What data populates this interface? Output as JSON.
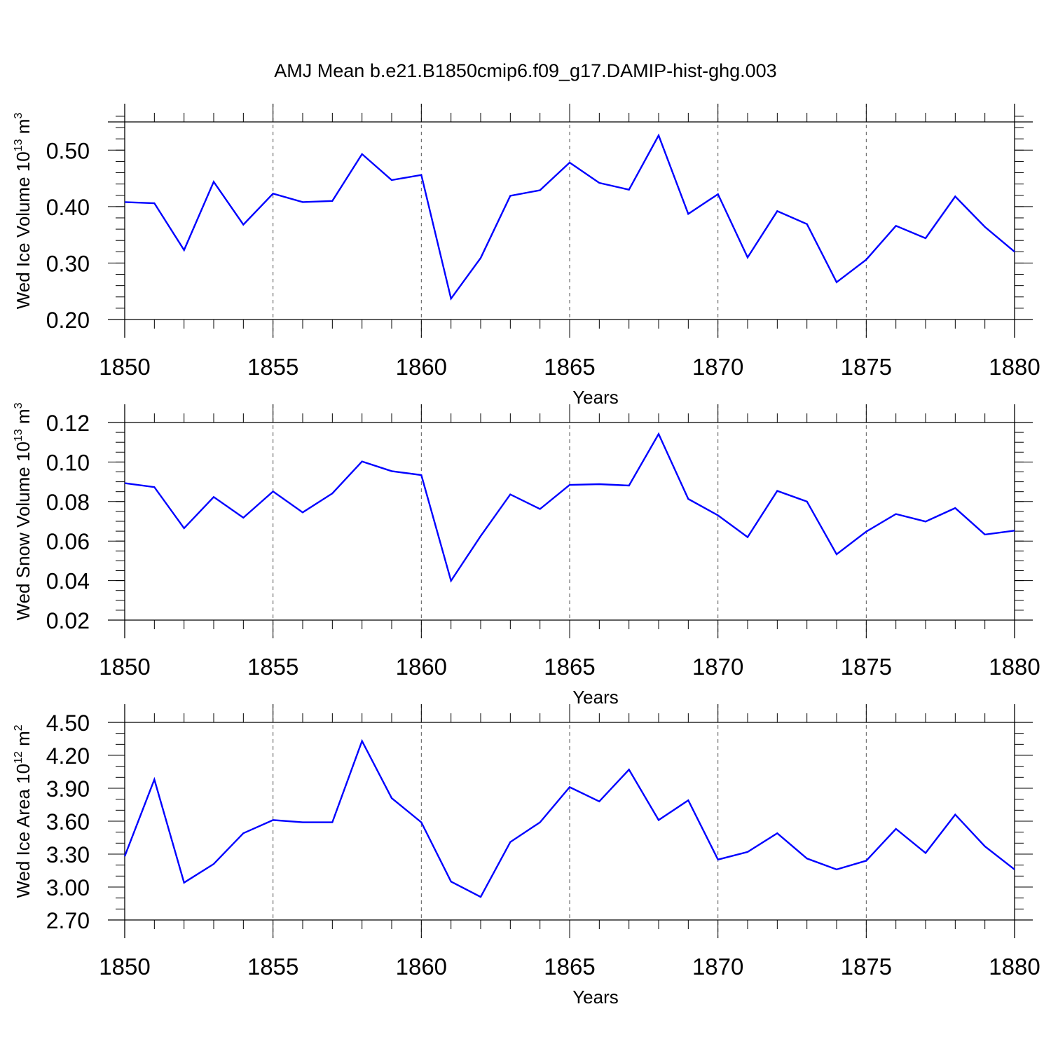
{
  "figure": {
    "title": "AMJ Mean b.e21.B1850cmip6.f09_g17.DAMIP-hist-ghg.003"
  },
  "chart_data": [
    {
      "type": "line",
      "title": "AMJ Mean b.e21.B1850cmip6.f09_g17.DAMIP-hist-ghg.003",
      "xlabel": "Years",
      "ylabel": {
        "base": "Wed Ice Volume 10",
        "exp": "13",
        "unit": " m",
        "unit_exp": "3"
      },
      "xlim": [
        1850,
        1880
      ],
      "ylim": [
        0.2,
        0.55
      ],
      "yticks": [
        "0.20",
        "0.30",
        "0.40",
        "0.50"
      ],
      "yminor_step": 0.02,
      "xticks": [
        "1850",
        "1855",
        "1860",
        "1865",
        "1870",
        "1875",
        "1880"
      ],
      "grid": "x-major dashed",
      "x": [
        1850,
        1851,
        1852,
        1853,
        1854,
        1855,
        1856,
        1857,
        1858,
        1859,
        1860,
        1861,
        1862,
        1863,
        1864,
        1865,
        1866,
        1867,
        1868,
        1869,
        1870,
        1871,
        1872,
        1873,
        1874,
        1875,
        1876,
        1877,
        1878,
        1879,
        1880
      ],
      "series": [
        {
          "name": "Wed Ice Volume",
          "color": "#0000ff",
          "values": [
            0.408,
            0.406,
            0.323,
            0.444,
            0.368,
            0.423,
            0.408,
            0.41,
            0.493,
            0.447,
            0.456,
            0.237,
            0.309,
            0.419,
            0.429,
            0.478,
            0.442,
            0.43,
            0.526,
            0.387,
            0.422,
            0.31,
            0.392,
            0.369,
            0.266,
            0.306,
            0.366,
            0.344,
            0.418,
            0.364,
            0.32
          ]
        }
      ]
    },
    {
      "type": "line",
      "xlabel": "Years",
      "ylabel": {
        "base": "Wed Snow Volume 10",
        "exp": "13",
        "unit": " m",
        "unit_exp": "3"
      },
      "xlim": [
        1850,
        1880
      ],
      "ylim": [
        0.02,
        0.12
      ],
      "yticks": [
        "0.02",
        "0.04",
        "0.06",
        "0.08",
        "0.10",
        "0.12"
      ],
      "yminor_step": 0.005,
      "xticks": [
        "1850",
        "1855",
        "1860",
        "1865",
        "1870",
        "1875",
        "1880"
      ],
      "grid": "x-major dashed",
      "x": [
        1850,
        1851,
        1852,
        1853,
        1854,
        1855,
        1856,
        1857,
        1858,
        1859,
        1860,
        1861,
        1862,
        1863,
        1864,
        1865,
        1866,
        1867,
        1868,
        1869,
        1870,
        1871,
        1872,
        1873,
        1874,
        1875,
        1876,
        1877,
        1878,
        1879,
        1880
      ],
      "series": [
        {
          "name": "Wed Snow Volume",
          "color": "#0000ff",
          "values": [
            0.0893,
            0.0873,
            0.0665,
            0.0823,
            0.0718,
            0.0851,
            0.0745,
            0.0841,
            0.1003,
            0.0954,
            0.0934,
            0.0399,
            0.0625,
            0.0836,
            0.0762,
            0.0884,
            0.0888,
            0.0881,
            0.1142,
            0.0813,
            0.073,
            0.062,
            0.0854,
            0.08,
            0.0533,
            0.0648,
            0.0737,
            0.0699,
            0.0767,
            0.0633,
            0.0653
          ]
        }
      ]
    },
    {
      "type": "line",
      "xlabel": "Years",
      "ylabel": {
        "base": "Wed Ice Area 10",
        "exp": "12",
        "unit": " m",
        "unit_exp": "2"
      },
      "xlim": [
        1850,
        1880
      ],
      "ylim": [
        2.7,
        4.5
      ],
      "yticks": [
        "2.70",
        "3.00",
        "3.30",
        "3.60",
        "3.90",
        "4.20",
        "4.50"
      ],
      "yminor_step": 0.1,
      "xticks": [
        "1850",
        "1855",
        "1860",
        "1865",
        "1870",
        "1875",
        "1880"
      ],
      "grid": "x-major dashed",
      "x": [
        1850,
        1851,
        1852,
        1853,
        1854,
        1855,
        1856,
        1857,
        1858,
        1859,
        1860,
        1861,
        1862,
        1863,
        1864,
        1865,
        1866,
        1867,
        1868,
        1869,
        1870,
        1871,
        1872,
        1873,
        1874,
        1875,
        1876,
        1877,
        1878,
        1879,
        1880
      ],
      "series": [
        {
          "name": "Wed Ice Area",
          "color": "#0000ff",
          "values": [
            3.28,
            3.98,
            3.04,
            3.21,
            3.49,
            3.61,
            3.59,
            3.59,
            4.33,
            3.81,
            3.59,
            3.05,
            2.91,
            3.41,
            3.59,
            3.91,
            3.78,
            4.07,
            3.61,
            3.79,
            3.25,
            3.32,
            3.49,
            3.26,
            3.16,
            3.24,
            3.53,
            3.31,
            3.66,
            3.37,
            3.16
          ]
        }
      ]
    }
  ]
}
